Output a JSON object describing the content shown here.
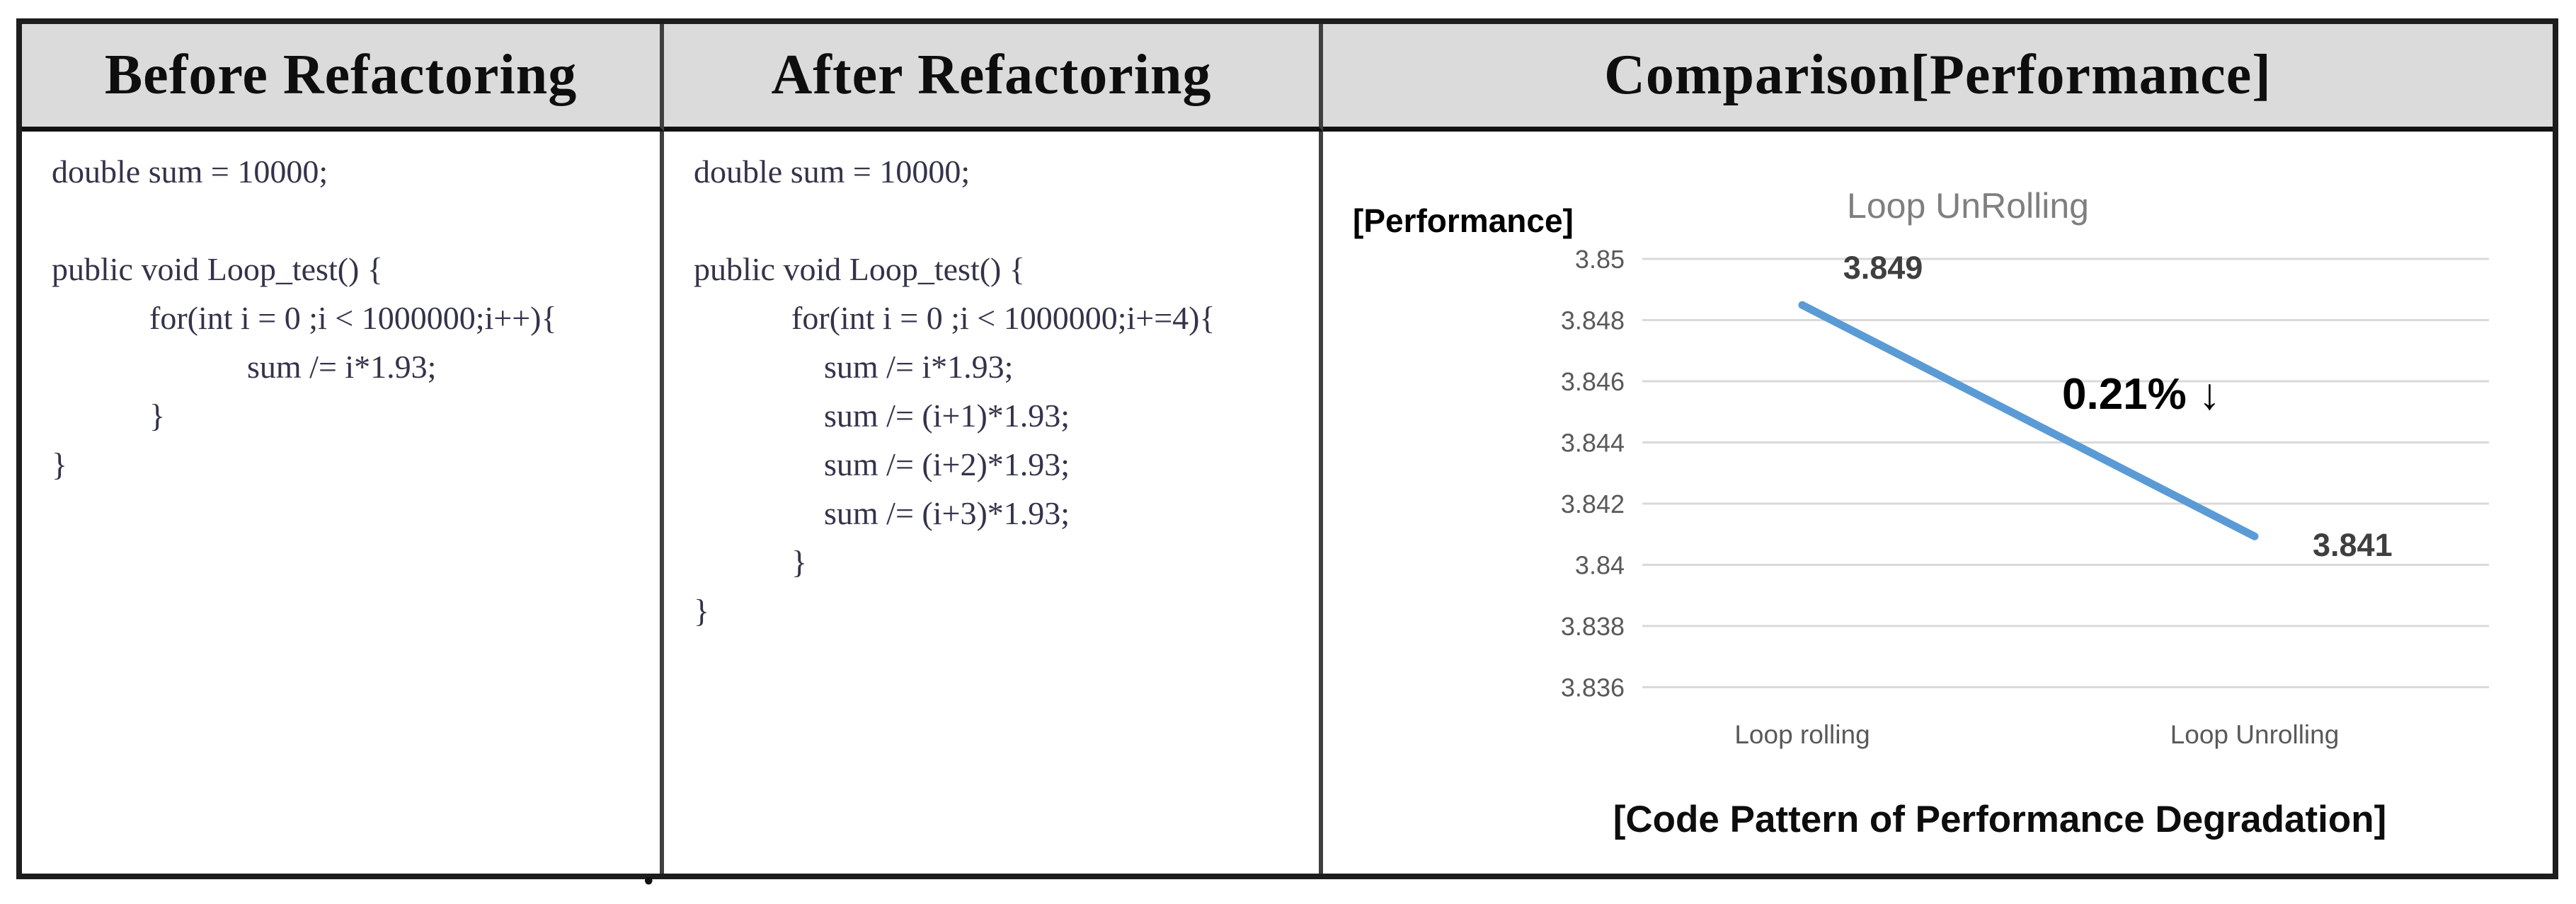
{
  "table": {
    "headers": [
      {
        "label": "Before Refactoring"
      },
      {
        "label": "After Refactoring"
      },
      {
        "label": "Comparison[Performance]"
      }
    ],
    "before_code": [
      "double sum = 10000;",
      "",
      "public void Loop_test() {",
      "            for(int i = 0 ;i < 1000000;i++){",
      "                        sum /= i*1.93;",
      "            }",
      "}"
    ],
    "after_code": [
      "double sum = 10000;",
      "",
      "public void Loop_test() {",
      "            for(int i = 0 ;i < 1000000;i+=4){",
      "                sum /= i*1.93;",
      "                sum /= (i+1)*1.93;",
      "                sum /= (i+2)*1.93;",
      "                sum /= (i+3)*1.93;",
      "            }",
      "}"
    ]
  },
  "chart_data": {
    "type": "line",
    "title": "Loop UnRolling",
    "axis_label": "[Performance]",
    "caption": "[Code Pattern of Performance Degradation]",
    "categories": [
      "Loop rolling",
      "Loop Unrolling"
    ],
    "series": [
      {
        "name": "Loop UnRolling",
        "values": [
          3.849,
          3.841
        ]
      }
    ],
    "point_labels": [
      "3.849",
      "3.841"
    ],
    "annotation": "0.21% ↓",
    "y_ticks": [
      3.85,
      3.848,
      3.846,
      3.844,
      3.842,
      3.84,
      3.838,
      3.836
    ],
    "ylim": [
      3.836,
      3.85
    ],
    "grid": true,
    "legend_position": "none",
    "colors": {
      "line": "#5B9BD5",
      "grid": "#D9D9D9",
      "tick_text": "#595959",
      "title_text": "#7F7F7F",
      "point_label_text": "#3F3F3F",
      "annotation_text": "#000000",
      "caption_text": "#0d0d0d",
      "axis_label_text": "#000000"
    }
  },
  "footnote": "."
}
